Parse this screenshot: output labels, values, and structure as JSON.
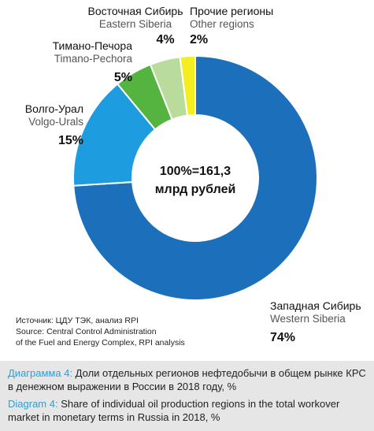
{
  "chart_data": {
    "type": "pie",
    "donut": true,
    "center_label": [
      "100%=161,3",
      "млрд рублей"
    ],
    "slices": [
      {
        "label_ru": "Западная Сибирь",
        "label_en": "Western Siberia",
        "value": 74,
        "pct_label": "74%",
        "color": "#1b6fbb"
      },
      {
        "label_ru": "Волго-Урал",
        "label_en": "Volgo-Urals",
        "value": 15,
        "pct_label": "15%",
        "color": "#1e9ce0"
      },
      {
        "label_ru": "Тимано-Печора",
        "label_en": "Timano-Pechora",
        "value": 5,
        "pct_label": "5%",
        "color": "#54b43f"
      },
      {
        "label_ru": "Восточная Сибирь",
        "label_en": "Eastern Siberia",
        "value": 4,
        "pct_label": "4%",
        "color": "#b9dc9c"
      },
      {
        "label_ru": "Прочие регионы",
        "label_en": "Other regions",
        "value": 2,
        "pct_label": "2%",
        "color": "#f4ee1e"
      }
    ]
  },
  "source": {
    "line1": "Источник: ЦДУ ТЭК, анализ RPI",
    "line2": "Source: Central Control Administration",
    "line3": "of the Fuel and Energy Complex, RPI analysis"
  },
  "caption": {
    "ru_prefix": "Диаграмма 4:",
    "ru_text": " Доли отдельных регионов нефтедобычи в общем рынке КРС в денежном выражении в России в 2018 году, %",
    "en_prefix": "Diagram 4:",
    "en_text": " Share of individual oil production regions in the total workover market in monetary terms in Russia in 2018, %",
    "highlight_color": "#2aa0d8",
    "background": "#e6e6e6"
  }
}
